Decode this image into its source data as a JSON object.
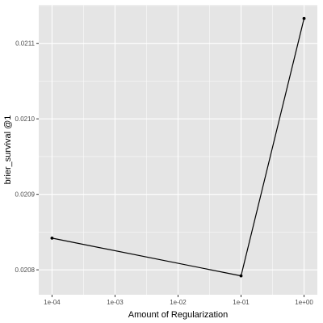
{
  "chart_data": {
    "type": "line",
    "xlabel": "Amount of Regularization",
    "ylabel": "brier_survival @1",
    "x_scale": "log10",
    "xlim": [
      6.16e-05,
      1.625
    ],
    "ylim": [
      0.020767,
      0.021151
    ],
    "x_ticks": [
      {
        "value": 0.0001,
        "label": "1e-04"
      },
      {
        "value": 0.001,
        "label": "1e-03"
      },
      {
        "value": 0.01,
        "label": "1e-02"
      },
      {
        "value": 0.1,
        "label": "1e-01"
      },
      {
        "value": 1,
        "label": "1e+00"
      }
    ],
    "y_ticks": [
      {
        "value": 0.0208,
        "label": "0.0208"
      },
      {
        "value": 0.0209,
        "label": "0.0209"
      },
      {
        "value": 0.021,
        "label": "0.0210"
      },
      {
        "value": 0.0211,
        "label": "0.0211"
      }
    ],
    "series": [
      {
        "x": [
          0.0001,
          0.1,
          1
        ],
        "y": [
          0.020842,
          0.020792,
          0.021133
        ]
      }
    ],
    "grid": true,
    "colors": {
      "panel": "#e5e5e5",
      "grid_major": "#ffffff",
      "line": "#000000",
      "point": "#000000",
      "tick_text": "#4d4d4d"
    }
  }
}
